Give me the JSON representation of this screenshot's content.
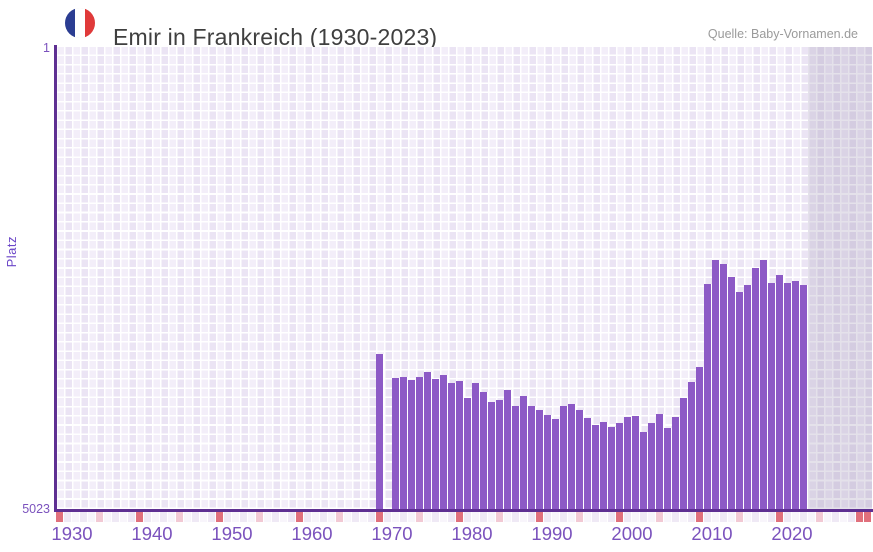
{
  "header": {
    "title": "Emir in Frankreich (1930-2023)",
    "source": "Quelle: Baby-Vornamen.de"
  },
  "colors": {
    "bar": "#8d5ac6",
    "axis": "#5e2f92",
    "axis_label": "#7b52bd",
    "y_label": "#6b46c8",
    "plot_bg": "#f3eef9",
    "no_data_band": "rgba(132,118,158,0.22)",
    "strip_pale_even": "#f8f5fb",
    "strip_pale_odd": "#efe9f5",
    "strip_pink_dark": "#e0707c",
    "strip_pink_light": "#f2c9d4",
    "flag_blue": "#2b3d92",
    "flag_white": "#ffffff",
    "flag_red": "#e03a3a"
  },
  "chart_data": {
    "type": "bar",
    "title": "Emir in Frankreich (1930-2023)",
    "ylabel": "Platz",
    "xlabel": "",
    "legend": "none",
    "grid": true,
    "y_axis": {
      "min": 1,
      "max": 5023,
      "inverted": true,
      "tick_labels": [
        "1",
        "5023"
      ]
    },
    "x_axis": {
      "start_year": 1928,
      "end_year": 2030,
      "tick_years": [
        1930,
        1940,
        1950,
        1960,
        1970,
        1980,
        1990,
        2000,
        2010,
        2020
      ]
    },
    "no_data_band": {
      "from_year": 2022,
      "to_year": 2030
    },
    "points": [
      {
        "year": 1968,
        "rank": 3340
      },
      {
        "year": 1970,
        "rank": 3600
      },
      {
        "year": 1971,
        "rank": 3590
      },
      {
        "year": 1972,
        "rank": 3620
      },
      {
        "year": 1973,
        "rank": 3590
      },
      {
        "year": 1974,
        "rank": 3530
      },
      {
        "year": 1975,
        "rank": 3610
      },
      {
        "year": 1976,
        "rank": 3570
      },
      {
        "year": 1977,
        "rank": 3650
      },
      {
        "year": 1978,
        "rank": 3630
      },
      {
        "year": 1979,
        "rank": 3820
      },
      {
        "year": 1980,
        "rank": 3650
      },
      {
        "year": 1981,
        "rank": 3750
      },
      {
        "year": 1982,
        "rank": 3860
      },
      {
        "year": 1983,
        "rank": 3840
      },
      {
        "year": 1984,
        "rank": 3730
      },
      {
        "year": 1985,
        "rank": 3900
      },
      {
        "year": 1986,
        "rank": 3800
      },
      {
        "year": 1987,
        "rank": 3900
      },
      {
        "year": 1988,
        "rank": 3950
      },
      {
        "year": 1989,
        "rank": 4000
      },
      {
        "year": 1990,
        "rank": 4040
      },
      {
        "year": 1991,
        "rank": 3900
      },
      {
        "year": 1992,
        "rank": 3880
      },
      {
        "year": 1993,
        "rank": 3950
      },
      {
        "year": 1994,
        "rank": 4030
      },
      {
        "year": 1995,
        "rank": 4110
      },
      {
        "year": 1996,
        "rank": 4080
      },
      {
        "year": 1997,
        "rank": 4130
      },
      {
        "year": 1998,
        "rank": 4090
      },
      {
        "year": 1999,
        "rank": 4020
      },
      {
        "year": 2000,
        "rank": 4010
      },
      {
        "year": 2001,
        "rank": 4190
      },
      {
        "year": 2002,
        "rank": 4090
      },
      {
        "year": 2003,
        "rank": 3990
      },
      {
        "year": 2004,
        "rank": 4140
      },
      {
        "year": 2005,
        "rank": 4020
      },
      {
        "year": 2006,
        "rank": 3820
      },
      {
        "year": 2007,
        "rank": 3640
      },
      {
        "year": 2008,
        "rank": 3480
      },
      {
        "year": 2009,
        "rank": 2580
      },
      {
        "year": 2010,
        "rank": 2320
      },
      {
        "year": 2011,
        "rank": 2360
      },
      {
        "year": 2012,
        "rank": 2500
      },
      {
        "year": 2013,
        "rank": 2660
      },
      {
        "year": 2014,
        "rank": 2590
      },
      {
        "year": 2015,
        "rank": 2400
      },
      {
        "year": 2016,
        "rank": 2320
      },
      {
        "year": 2017,
        "rank": 2570
      },
      {
        "year": 2018,
        "rank": 2480
      },
      {
        "year": 2019,
        "rank": 2570
      },
      {
        "year": 2020,
        "rank": 2550
      },
      {
        "year": 2021,
        "rank": 2590
      }
    ]
  }
}
